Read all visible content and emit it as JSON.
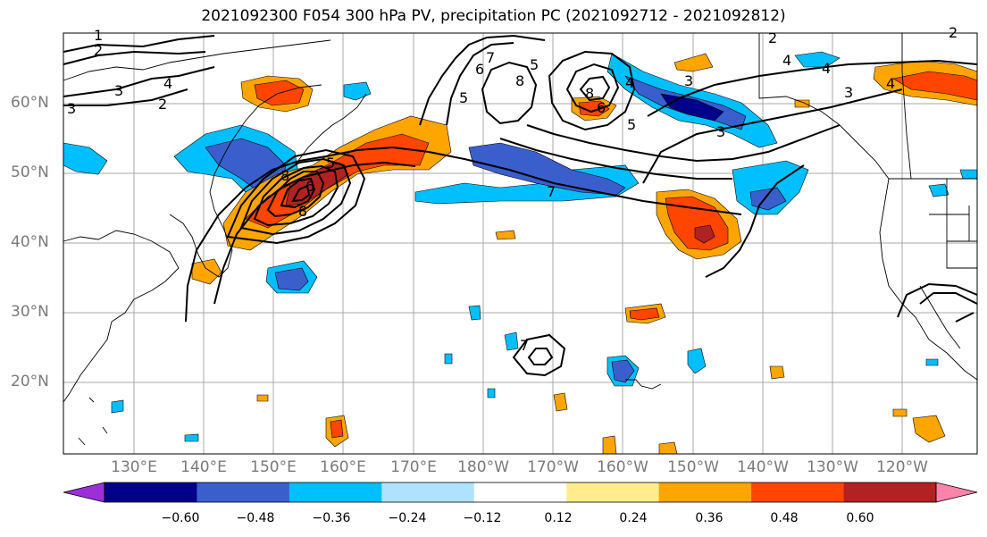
{
  "title": "2021092300 F054 300 hPa PV, precipitation PC (2021092712 - 2021092812)",
  "lat_labels": [
    "60°N",
    "50°N",
    "40°N",
    "30°N",
    "20°N"
  ],
  "lon_labels": [
    "130°E",
    "140°E",
    "150°E",
    "160°E",
    "170°E",
    "180°W",
    "170°W",
    "160°W",
    "150°W",
    "140°W",
    "130°W",
    "120°W"
  ],
  "colorbar": {
    "ticks": [
      "−0.60",
      "−0.48",
      "−0.36",
      "−0.24",
      "−0.12",
      "0.12",
      "0.24",
      "0.36",
      "0.48",
      "0.60"
    ],
    "colors": [
      "#9b30d9",
      "#00008b",
      "#3a5fcd",
      "#00bfff",
      "#b0e2ff",
      "#ffffff",
      "#ffec8b",
      "#ffa500",
      "#ff4500",
      "#b22222",
      "#ff82ab"
    ]
  },
  "contour_labels": [
    "1",
    "2",
    "3",
    "4",
    "2",
    "3",
    "5",
    "8",
    "8",
    "6",
    "5",
    "7",
    "4",
    "3",
    "4",
    "2",
    "4",
    "2",
    "4",
    "3",
    "5",
    "6",
    "7",
    "8",
    "3",
    "7",
    "6",
    "5",
    "8"
  ]
}
